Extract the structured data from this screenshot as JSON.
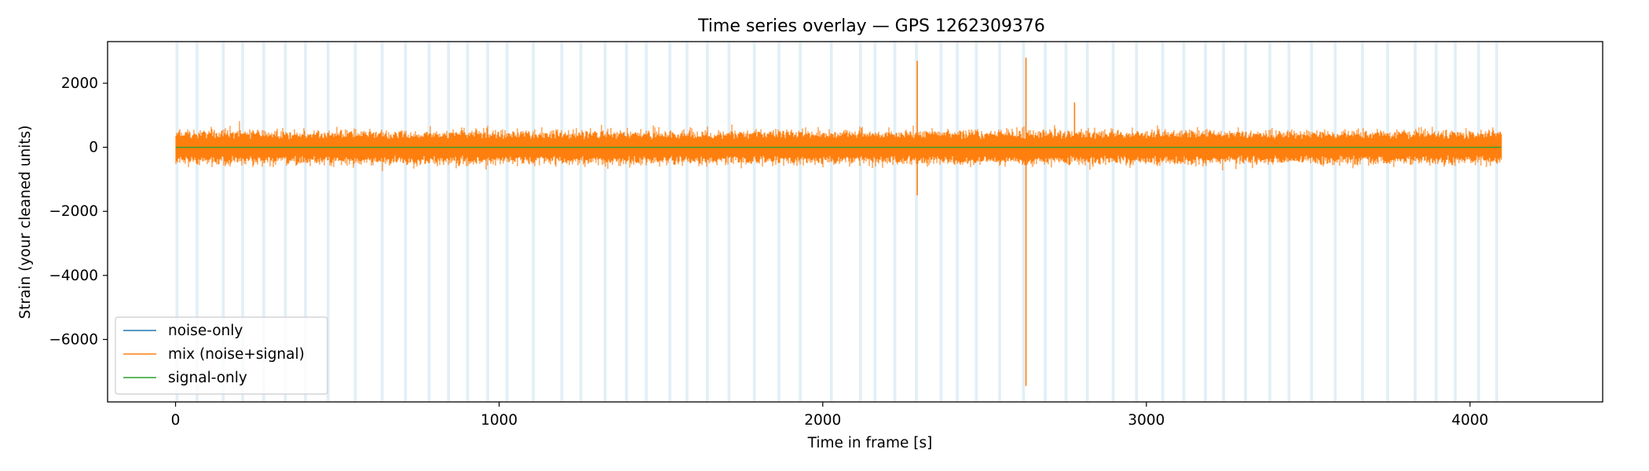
{
  "chart_data": {
    "type": "line",
    "title": "Time series overlay — GPS 1262309376",
    "xlabel": "Time in frame [s]",
    "ylabel": "Strain (your cleaned units)",
    "xlim": [
      -210,
      4410
    ],
    "ylim": [
      -7950,
      3300
    ],
    "xticks": [
      0,
      1000,
      2000,
      3000,
      4000
    ],
    "yticks": [
      -6000,
      -4000,
      -2000,
      0,
      2000
    ],
    "grid": false,
    "legend_position": "lower-left",
    "series": [
      {
        "name": "noise-only",
        "color": "#1f77b4",
        "x_range": [
          0,
          4096
        ],
        "values": [
          [
            0,
            0
          ],
          [
            4096,
            0
          ]
        ]
      },
      {
        "name": "mix (noise+signal)",
        "color": "#ff7f0e",
        "x_range": [
          0,
          4096
        ],
        "typical_band": [
          -450,
          450
        ],
        "spikes": [
          {
            "x": 2292,
            "min": -1500,
            "max": 2700
          },
          {
            "x": 2628,
            "min": -7450,
            "max": 2800
          },
          {
            "x": 2778,
            "min": -300,
            "max": 1400
          }
        ]
      },
      {
        "name": "signal-only",
        "color": "#2ca02c",
        "x_range": [
          0,
          4096
        ],
        "values": [
          [
            0,
            0
          ],
          [
            4096,
            0
          ]
        ]
      }
    ],
    "shaded_intervals": {
      "color": "#9ecae1",
      "x_starts": [
        0,
        62,
        143,
        203,
        268,
        335,
        397,
        467,
        551,
        634,
        706,
        779,
        839,
        898,
        960,
        1020,
        1101,
        1189,
        1248,
        1323,
        1389,
        1450,
        1523,
        1576,
        1639,
        1706,
        1784,
        1860,
        1926,
        2022,
        2112,
        2157,
        2218,
        2285,
        2361,
        2411,
        2470,
        2542,
        2616,
        2683,
        2747,
        2813,
        2893,
        2965,
        3046,
        3111,
        3178,
        3234,
        3302,
        3377,
        3436,
        3506,
        3579,
        3663,
        3741,
        3826,
        3891,
        3950,
        4022,
        4078
      ],
      "width": 9
    }
  }
}
